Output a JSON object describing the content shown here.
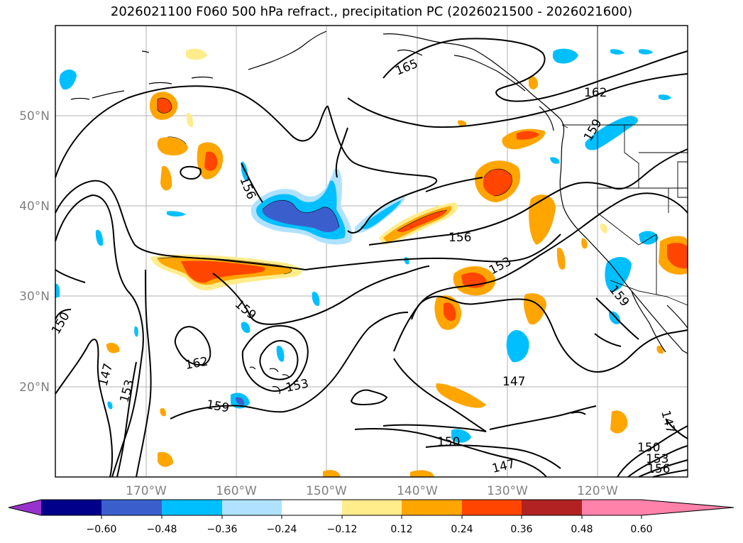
{
  "title": "2026021100 F060 500 hPa refract., precipitation PC (2026021500 - 2026021600)",
  "lat_labels": [
    "50°N",
    "40°N",
    "30°N",
    "20°N"
  ],
  "lon_labels": [
    "170°W",
    "160°W",
    "150°W",
    "140°W",
    "130°W",
    "120°W"
  ],
  "contour_labels": [
    "165",
    "162",
    "156",
    "156",
    "153",
    "159",
    "159",
    "162",
    "153",
    "150",
    "147",
    "153",
    "159",
    "147",
    "150",
    "147",
    "147",
    "150",
    "153",
    "156",
    "159"
  ],
  "colorbar": {
    "ticks": [
      "−0.60",
      "−0.48",
      "−0.36",
      "−0.24",
      "−0.12",
      "0.12",
      "0.24",
      "0.36",
      "0.48",
      "0.60"
    ],
    "colors": [
      "#9932cc",
      "#00008b",
      "#3a5fcd",
      "#00bfff",
      "#b0e2ff",
      "#ffffff",
      "#ffec8b",
      "#ffa500",
      "#ff4500",
      "#b22222",
      "#ff82ab"
    ]
  }
}
